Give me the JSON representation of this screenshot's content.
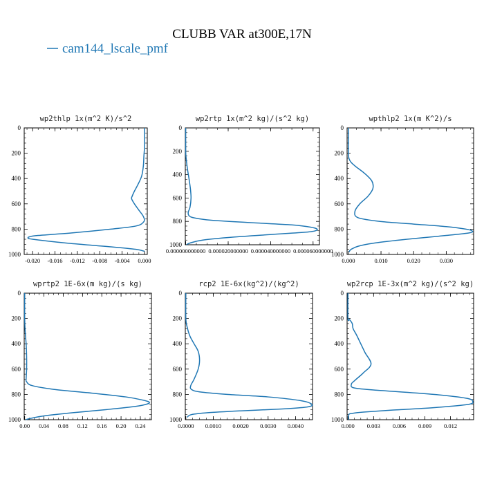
{
  "title": "CLUBB VAR at300E,17N",
  "legend": {
    "label": "cam144_lscale_pmf",
    "color": "#1f77b4"
  },
  "chart_data": [
    {
      "type": "line",
      "title": "wp2thlp  1x(m^2 K)/s^2",
      "xlim": [
        -0.0215,
        0.0005
      ],
      "ylim": [
        1000,
        0
      ],
      "xticks": [
        -0.02,
        -0.016,
        -0.012,
        -0.008,
        -0.004,
        0.0
      ],
      "xtick_labels": [
        "-0.020",
        "-0.016",
        "-0.012",
        "-0.008",
        "-0.004",
        "0.000"
      ],
      "yticks": [
        0,
        200,
        400,
        600,
        800,
        1000
      ],
      "ytick_labels": [
        "0",
        "200",
        "400",
        "600",
        "800",
        "1000"
      ],
      "series": [
        {
          "name": "cam144_lscale_pmf",
          "x": [
            0.0,
            0.0,
            -0.0001,
            -0.0002,
            -0.0005,
            -0.0012,
            -0.0018,
            -0.0022,
            -0.0023,
            -0.0018,
            -0.001,
            -0.0002,
            -0.0001,
            -0.0015,
            -0.006,
            -0.013,
            -0.019,
            -0.0205,
            -0.0208,
            -0.02,
            -0.014,
            -0.006,
            -0.0015,
            0.0
          ],
          "y": [
            0,
            150,
            220,
            300,
            380,
            450,
            500,
            540,
            560,
            600,
            650,
            700,
            740,
            775,
            800,
            830,
            850,
            860,
            870,
            880,
            910,
            940,
            960,
            975
          ]
        }
      ]
    },
    {
      "type": "line",
      "title": "wp2rtp  1x(m^2 kg)/(s^2 kg)",
      "xlim": [
        -2e-07,
        6.3e-05
      ],
      "ylim": [
        1000,
        0
      ],
      "xticks": [
        0,
        2e-05,
        4e-05,
        6e-05
      ],
      "xtick_labels": [
        "0.000000000000",
        "0.000020000000",
        "0.000040000000",
        "0.000060000000"
      ],
      "yticks": [
        0,
        200,
        400,
        600,
        800,
        1000
      ],
      "ytick_labels": [
        "0",
        "200",
        "400",
        "600",
        "800",
        "1000"
      ],
      "series": [
        {
          "name": "cam144_lscale_pmf",
          "x": [
            0,
            0,
            2e-07,
            8e-07,
            1.5e-06,
            2.2e-06,
            2.5e-06,
            2e-06,
            1.2e-06,
            1.5e-06,
            4e-06,
            1.2e-05,
            3e-05,
            5e-05,
            5.9e-05,
            6.2e-05,
            5.8e-05,
            4.2e-05,
            2.2e-05,
            8e-06,
            2e-06,
            4e-07
          ],
          "y": [
            0,
            200,
            260,
            350,
            430,
            520,
            600,
            680,
            720,
            750,
            770,
            790,
            810,
            830,
            850,
            870,
            890,
            910,
            935,
            960,
            985,
            1000
          ]
        }
      ]
    },
    {
      "type": "line",
      "title": "wpthlp2  1x(m K^2)/s",
      "xlim": [
        -0.0004,
        0.0384
      ],
      "ylim": [
        1000,
        0
      ],
      "xticks": [
        0,
        0.01,
        0.02,
        0.03
      ],
      "xtick_labels": [
        "0.000",
        "0.010",
        "0.020",
        "0.030"
      ],
      "yticks": [
        0,
        200,
        400,
        600,
        800,
        1000
      ],
      "ytick_labels": [
        "0",
        "200",
        "400",
        "600",
        "800",
        "1000"
      ],
      "series": [
        {
          "name": "cam144_lscale_pmf",
          "x": [
            0,
            0,
            0.0005,
            0.002,
            0.005,
            0.0072,
            0.0075,
            0.006,
            0.0035,
            0.002,
            0.003,
            0.01,
            0.02,
            0.03,
            0.036,
            0.038,
            0.037,
            0.03,
            0.018,
            0.008,
            0.003,
            0.0008,
            0.0002
          ],
          "y": [
            0,
            200,
            260,
            300,
            360,
            420,
            480,
            540,
            600,
            660,
            710,
            740,
            760,
            780,
            800,
            815,
            830,
            850,
            880,
            910,
            935,
            960,
            980
          ]
        }
      ]
    },
    {
      "type": "line",
      "title": "wprtp2  1E-6x(m kg)/(s kg)",
      "xlim": [
        -0.001,
        0.263
      ],
      "ylim": [
        1000,
        0
      ],
      "xticks": [
        0,
        0.04,
        0.08,
        0.12,
        0.16,
        0.2,
        0.24
      ],
      "xtick_labels": [
        "0.00",
        "0.04",
        "0.08",
        "0.12",
        "0.16",
        "0.20",
        "0.24"
      ],
      "yticks": [
        0,
        200,
        400,
        600,
        800,
        1000
      ],
      "ytick_labels": [
        "0",
        "200",
        "400",
        "600",
        "800",
        "1000"
      ],
      "series": [
        {
          "name": "cam144_lscale_pmf",
          "x": [
            0,
            0,
            0.001,
            0.003,
            0.004,
            0.004,
            0.003,
            0.004,
            0.015,
            0.06,
            0.14,
            0.21,
            0.245,
            0.258,
            0.255,
            0.23,
            0.17,
            0.1,
            0.04,
            0.012,
            0.002
          ],
          "y": [
            0,
            200,
            300,
            400,
            500,
            600,
            680,
            700,
            730,
            760,
            790,
            820,
            845,
            860,
            875,
            895,
            920,
            945,
            970,
            990,
            1000
          ]
        }
      ]
    },
    {
      "type": "line",
      "title": "rcp2  1E-6x(kg^2)/(kg^2)",
      "xlim": [
        -2e-05,
        0.00462
      ],
      "ylim": [
        1000,
        0
      ],
      "xticks": [
        0,
        0.001,
        0.002,
        0.003,
        0.004
      ],
      "xtick_labels": [
        "0.0000",
        "0.0010",
        "0.0020",
        "0.0030",
        "0.0040"
      ],
      "yticks": [
        0,
        200,
        400,
        600,
        800,
        1000
      ],
      "ytick_labels": [
        "0",
        "200",
        "400",
        "600",
        "800",
        "1000"
      ],
      "series": [
        {
          "name": "cam144_lscale_pmf",
          "x": [
            0,
            0,
            5e-05,
            0.00015,
            0.0003,
            0.00045,
            0.0005,
            0.00045,
            0.0003,
            0.00018,
            0.0002,
            0.0005,
            0.0015,
            0.003,
            0.0042,
            0.0046,
            0.0044,
            0.0035,
            0.002,
            0.0008,
            0.0002,
            5e-05
          ],
          "y": [
            0,
            200,
            270,
            340,
            400,
            460,
            530,
            600,
            680,
            730,
            760,
            780,
            800,
            820,
            850,
            880,
            900,
            915,
            930,
            945,
            960,
            980
          ]
        }
      ]
    },
    {
      "type": "line",
      "title": "wp2rcp  1E-3x(m^2 kg)/(s^2 kg)",
      "xlim": [
        -0.0001,
        0.0147
      ],
      "ylim": [
        1000,
        0
      ],
      "xticks": [
        0,
        0.003,
        0.006,
        0.009,
        0.012
      ],
      "xtick_labels": [
        "0.000",
        "0.003",
        "0.006",
        "0.009",
        "0.012"
      ],
      "yticks": [
        0,
        200,
        400,
        600,
        800,
        1000
      ],
      "ytick_labels": [
        "0",
        "200",
        "400",
        "600",
        "800",
        "1000"
      ],
      "series": [
        {
          "name": "cam144_lscale_pmf",
          "x": [
            0,
            0,
            0.0002,
            0.0005,
            0.0006,
            0.001,
            0.0015,
            0.002,
            0.0027,
            0.0018,
            0.0008,
            0.0004,
            0.0008,
            0.004,
            0.01,
            0.0138,
            0.0146,
            0.014,
            0.01,
            0.005,
            0.0018,
            0.0005,
            0.0001,
            0.0001
          ],
          "y": [
            0,
            200,
            210,
            240,
            280,
            330,
            400,
            470,
            560,
            630,
            690,
            720,
            750,
            770,
            800,
            830,
            855,
            880,
            905,
            925,
            940,
            950,
            960,
            1000
          ]
        }
      ]
    }
  ]
}
